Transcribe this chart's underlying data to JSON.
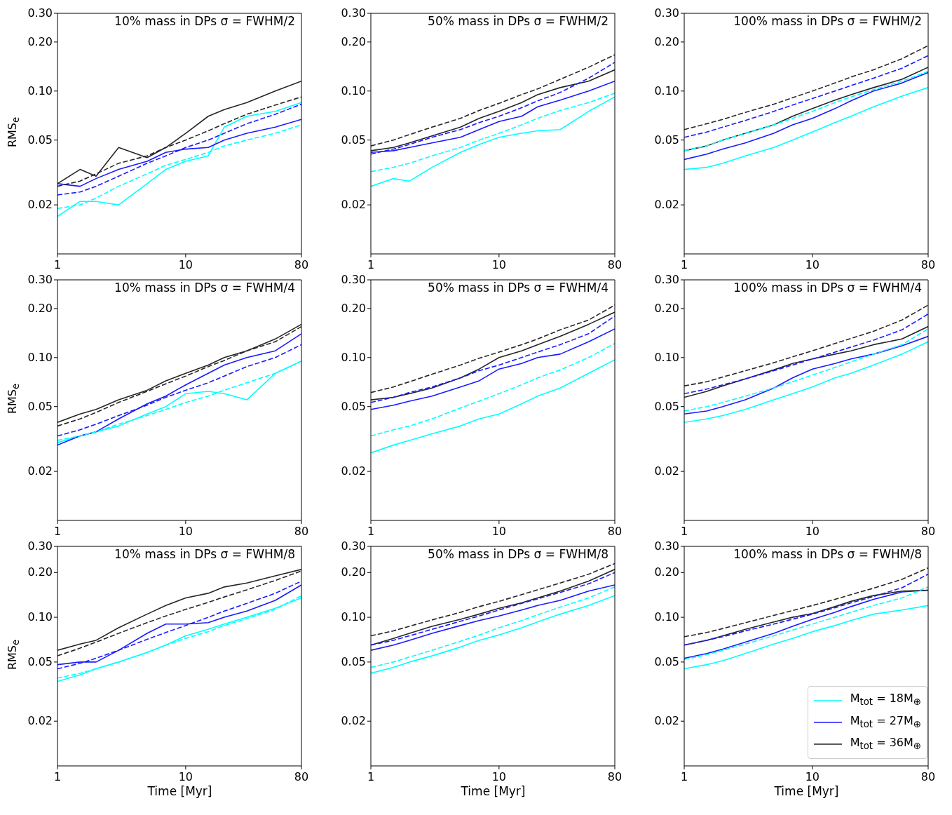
{
  "chart_data": [
    {
      "type": "line",
      "title": "10% mass in DPs σ = FWHM/2",
      "ylabel": "RMS$_{e}$",
      "log": "xy",
      "marker": "none",
      "xlim": [
        1,
        80
      ],
      "ylim": [
        0.01,
        0.3
      ],
      "xticks": [
        1,
        10,
        80
      ],
      "yticks": [
        {
          "value": 0.02,
          "label": "0.02"
        },
        {
          "value": 0.05,
          "label": "0.05"
        },
        {
          "value": 0.1,
          "label": "0.10"
        },
        {
          "value": 0.2,
          "label": "0.20"
        },
        {
          "value": 0.3,
          "label": "0.30"
        }
      ],
      "x": [
        1,
        1.5,
        2,
        3,
        5,
        7,
        10,
        15,
        20,
        30,
        50,
        80
      ],
      "series": [
        {
          "color": "#00ffff",
          "line_style": "solid",
          "values": [
            0.017,
            0.021,
            0.021,
            0.02,
            0.027,
            0.033,
            0.037,
            0.04,
            0.06,
            0.07,
            0.075,
            0.085
          ]
        },
        {
          "color": "#1a1aff",
          "line_style": "solid",
          "values": [
            0.027,
            0.026,
            0.029,
            0.033,
            0.037,
            0.042,
            0.044,
            0.045,
            0.05,
            0.055,
            0.06,
            0.067
          ]
        },
        {
          "color": "#262626",
          "line_style": "solid",
          "values": [
            0.027,
            0.033,
            0.03,
            0.045,
            0.039,
            0.045,
            0.055,
            0.07,
            0.077,
            0.085,
            0.1,
            0.115
          ]
        },
        {
          "color": "#00ffff",
          "line_style": "dashed",
          "values": [
            0.019,
            0.02,
            0.022,
            0.026,
            0.031,
            0.035,
            0.038,
            0.042,
            0.046,
            0.05,
            0.055,
            0.062
          ]
        },
        {
          "color": "#1a1aff",
          "line_style": "dashed",
          "values": [
            0.023,
            0.024,
            0.026,
            0.03,
            0.036,
            0.04,
            0.045,
            0.05,
            0.055,
            0.063,
            0.072,
            0.083
          ]
        },
        {
          "color": "#262626",
          "line_style": "dashed",
          "values": [
            0.026,
            0.028,
            0.031,
            0.036,
            0.04,
            0.045,
            0.05,
            0.057,
            0.063,
            0.072,
            0.082,
            0.092
          ]
        }
      ]
    },
    {
      "type": "line",
      "title": "50% mass in DPs σ = FWHM/2",
      "log": "xy",
      "marker": "none",
      "xlim": [
        1,
        80
      ],
      "ylim": [
        0.01,
        0.3
      ],
      "xticks": [
        1,
        10,
        80
      ],
      "yticks": [
        {
          "value": 0.02,
          "label": "0.02"
        },
        {
          "value": 0.05,
          "label": "0.05"
        },
        {
          "value": 0.1,
          "label": "0.10"
        },
        {
          "value": 0.2,
          "label": "0.20"
        },
        {
          "value": 0.3,
          "label": "0.30"
        }
      ],
      "x": [
        1,
        1.5,
        2,
        3,
        5,
        7,
        10,
        15,
        20,
        30,
        50,
        80
      ],
      "series": [
        {
          "color": "#00ffff",
          "line_style": "solid",
          "values": [
            0.026,
            0.029,
            0.028,
            0.034,
            0.042,
            0.047,
            0.052,
            0.055,
            0.057,
            0.058,
            0.075,
            0.092
          ]
        },
        {
          "color": "#1a1aff",
          "line_style": "solid",
          "values": [
            0.042,
            0.043,
            0.045,
            0.048,
            0.052,
            0.058,
            0.065,
            0.07,
            0.08,
            0.088,
            0.1,
            0.115
          ]
        },
        {
          "color": "#262626",
          "line_style": "solid",
          "values": [
            0.043,
            0.045,
            0.048,
            0.053,
            0.06,
            0.068,
            0.075,
            0.085,
            0.095,
            0.105,
            0.115,
            0.135
          ]
        },
        {
          "color": "#00ffff",
          "line_style": "dashed",
          "values": [
            0.032,
            0.034,
            0.036,
            0.04,
            0.045,
            0.05,
            0.055,
            0.062,
            0.068,
            0.076,
            0.085,
            0.097
          ]
        },
        {
          "color": "#1a1aff",
          "line_style": "dashed",
          "values": [
            0.041,
            0.044,
            0.047,
            0.052,
            0.058,
            0.064,
            0.07,
            0.079,
            0.087,
            0.098,
            0.12,
            0.15
          ]
        },
        {
          "color": "#262626",
          "line_style": "dashed",
          "values": [
            0.046,
            0.05,
            0.054,
            0.06,
            0.068,
            0.076,
            0.084,
            0.095,
            0.103,
            0.118,
            0.14,
            0.167
          ]
        }
      ]
    },
    {
      "type": "line",
      "title": "100% mass in DPs σ = FWHM/2",
      "log": "xy",
      "marker": "none",
      "xlim": [
        1,
        80
      ],
      "ylim": [
        0.01,
        0.3
      ],
      "xticks": [
        1,
        10,
        80
      ],
      "yticks": [
        {
          "value": 0.02,
          "label": "0.02"
        },
        {
          "value": 0.05,
          "label": "0.05"
        },
        {
          "value": 0.1,
          "label": "0.10"
        },
        {
          "value": 0.2,
          "label": "0.20"
        },
        {
          "value": 0.3,
          "label": "0.30"
        }
      ],
      "x": [
        1,
        1.5,
        2,
        3,
        5,
        7,
        10,
        15,
        20,
        30,
        50,
        80
      ],
      "series": [
        {
          "color": "#00ffff",
          "line_style": "solid",
          "values": [
            0.033,
            0.034,
            0.036,
            0.04,
            0.045,
            0.05,
            0.056,
            0.064,
            0.07,
            0.08,
            0.093,
            0.105
          ]
        },
        {
          "color": "#1a1aff",
          "line_style": "solid",
          "values": [
            0.038,
            0.041,
            0.044,
            0.048,
            0.055,
            0.062,
            0.068,
            0.078,
            0.087,
            0.1,
            0.112,
            0.13
          ]
        },
        {
          "color": "#262626",
          "line_style": "solid",
          "values": [
            0.043,
            0.046,
            0.05,
            0.055,
            0.062,
            0.07,
            0.078,
            0.088,
            0.095,
            0.105,
            0.118,
            0.14
          ]
        },
        {
          "color": "#00ffff",
          "line_style": "dashed",
          "values": [
            0.043,
            0.046,
            0.05,
            0.055,
            0.062,
            0.068,
            0.075,
            0.085,
            0.092,
            0.102,
            0.115,
            0.132
          ]
        },
        {
          "color": "#1a1aff",
          "line_style": "dashed",
          "values": [
            0.052,
            0.056,
            0.06,
            0.066,
            0.075,
            0.082,
            0.09,
            0.1,
            0.108,
            0.12,
            0.138,
            0.165
          ]
        },
        {
          "color": "#262626",
          "line_style": "dashed",
          "values": [
            0.058,
            0.063,
            0.067,
            0.074,
            0.083,
            0.091,
            0.1,
            0.112,
            0.122,
            0.135,
            0.158,
            0.19
          ]
        }
      ]
    },
    {
      "type": "line",
      "title": "10% mass in DPs σ = FWHM/4",
      "ylabel": "RMS$_{e}$",
      "log": "xy",
      "marker": "none",
      "xlim": [
        1,
        80
      ],
      "ylim": [
        0.01,
        0.3
      ],
      "xticks": [
        1,
        10,
        80
      ],
      "yticks": [
        {
          "value": 0.02,
          "label": "0.02"
        },
        {
          "value": 0.05,
          "label": "0.05"
        },
        {
          "value": 0.1,
          "label": "0.10"
        },
        {
          "value": 0.2,
          "label": "0.20"
        },
        {
          "value": 0.3,
          "label": "0.30"
        }
      ],
      "x": [
        1,
        1.5,
        2,
        3,
        5,
        7,
        10,
        15,
        20,
        30,
        50,
        80
      ],
      "series": [
        {
          "color": "#00ffff",
          "line_style": "solid",
          "values": [
            0.03,
            0.033,
            0.035,
            0.038,
            0.045,
            0.05,
            0.06,
            0.062,
            0.06,
            0.055,
            0.08,
            0.095
          ]
        },
        {
          "color": "#1a1aff",
          "line_style": "solid",
          "values": [
            0.029,
            0.033,
            0.035,
            0.042,
            0.052,
            0.058,
            0.068,
            0.08,
            0.09,
            0.1,
            0.11,
            0.14
          ]
        },
        {
          "color": "#262626",
          "line_style": "solid",
          "values": [
            0.04,
            0.045,
            0.048,
            0.055,
            0.063,
            0.072,
            0.08,
            0.09,
            0.1,
            0.11,
            0.13,
            0.16
          ]
        },
        {
          "color": "#00ffff",
          "line_style": "dashed",
          "values": [
            0.031,
            0.033,
            0.035,
            0.039,
            0.044,
            0.048,
            0.053,
            0.058,
            0.063,
            0.07,
            0.08,
            0.095
          ]
        },
        {
          "color": "#1a1aff",
          "line_style": "dashed",
          "values": [
            0.033,
            0.036,
            0.039,
            0.044,
            0.051,
            0.057,
            0.063,
            0.07,
            0.077,
            0.088,
            0.1,
            0.12
          ]
        },
        {
          "color": "#262626",
          "line_style": "dashed",
          "values": [
            0.038,
            0.042,
            0.046,
            0.053,
            0.062,
            0.069,
            0.077,
            0.088,
            0.096,
            0.11,
            0.125,
            0.155
          ]
        }
      ]
    },
    {
      "type": "line",
      "title": "50% mass in DPs σ = FWHM/4",
      "log": "xy",
      "marker": "none",
      "xlim": [
        1,
        80
      ],
      "ylim": [
        0.01,
        0.3
      ],
      "xticks": [
        1,
        10,
        80
      ],
      "yticks": [
        {
          "value": 0.02,
          "label": "0.02"
        },
        {
          "value": 0.05,
          "label": "0.05"
        },
        {
          "value": 0.1,
          "label": "0.10"
        },
        {
          "value": 0.2,
          "label": "0.20"
        },
        {
          "value": 0.3,
          "label": "0.30"
        }
      ],
      "x": [
        1,
        1.5,
        2,
        3,
        5,
        7,
        10,
        15,
        20,
        30,
        50,
        80
      ],
      "series": [
        {
          "color": "#00ffff",
          "line_style": "solid",
          "values": [
            0.026,
            0.029,
            0.031,
            0.034,
            0.038,
            0.042,
            0.045,
            0.052,
            0.058,
            0.065,
            0.08,
            0.097
          ]
        },
        {
          "color": "#1a1aff",
          "line_style": "solid",
          "values": [
            0.048,
            0.051,
            0.054,
            0.058,
            0.066,
            0.072,
            0.085,
            0.092,
            0.1,
            0.105,
            0.125,
            0.15
          ]
        },
        {
          "color": "#262626",
          "line_style": "solid",
          "values": [
            0.055,
            0.057,
            0.06,
            0.065,
            0.075,
            0.085,
            0.1,
            0.11,
            0.12,
            0.135,
            0.16,
            0.19
          ]
        },
        {
          "color": "#00ffff",
          "line_style": "dashed",
          "values": [
            0.033,
            0.036,
            0.038,
            0.042,
            0.049,
            0.054,
            0.06,
            0.068,
            0.075,
            0.084,
            0.1,
            0.122
          ]
        },
        {
          "color": "#1a1aff",
          "line_style": "dashed",
          "values": [
            0.053,
            0.057,
            0.061,
            0.066,
            0.075,
            0.083,
            0.09,
            0.1,
            0.108,
            0.12,
            0.14,
            0.18
          ]
        },
        {
          "color": "#262626",
          "line_style": "dashed",
          "values": [
            0.061,
            0.066,
            0.071,
            0.079,
            0.09,
            0.099,
            0.108,
            0.12,
            0.13,
            0.148,
            0.17,
            0.21
          ]
        }
      ]
    },
    {
      "type": "line",
      "title": "100% mass in DPs σ = FWHM/4",
      "log": "xy",
      "marker": "none",
      "xlim": [
        1,
        80
      ],
      "ylim": [
        0.01,
        0.3
      ],
      "xticks": [
        1,
        10,
        80
      ],
      "yticks": [
        {
          "value": 0.02,
          "label": "0.02"
        },
        {
          "value": 0.05,
          "label": "0.05"
        },
        {
          "value": 0.1,
          "label": "0.10"
        },
        {
          "value": 0.2,
          "label": "0.20"
        },
        {
          "value": 0.3,
          "label": "0.30"
        }
      ],
      "x": [
        1,
        1.5,
        2,
        3,
        5,
        7,
        10,
        15,
        20,
        30,
        50,
        80
      ],
      "series": [
        {
          "color": "#00ffff",
          "line_style": "solid",
          "values": [
            0.04,
            0.042,
            0.044,
            0.048,
            0.055,
            0.06,
            0.066,
            0.075,
            0.08,
            0.09,
            0.105,
            0.125
          ]
        },
        {
          "color": "#1a1aff",
          "line_style": "solid",
          "values": [
            0.045,
            0.047,
            0.05,
            0.055,
            0.065,
            0.075,
            0.085,
            0.092,
            0.098,
            0.105,
            0.118,
            0.135
          ]
        },
        {
          "color": "#262626",
          "line_style": "solid",
          "values": [
            0.057,
            0.062,
            0.067,
            0.074,
            0.084,
            0.092,
            0.098,
            0.105,
            0.11,
            0.12,
            0.13,
            0.155
          ]
        },
        {
          "color": "#00ffff",
          "line_style": "dashed",
          "values": [
            0.047,
            0.05,
            0.053,
            0.058,
            0.065,
            0.071,
            0.078,
            0.087,
            0.094,
            0.105,
            0.12,
            0.15
          ]
        },
        {
          "color": "#1a1aff",
          "line_style": "dashed",
          "values": [
            0.06,
            0.064,
            0.068,
            0.074,
            0.083,
            0.09,
            0.098,
            0.108,
            0.116,
            0.128,
            0.148,
            0.185
          ]
        },
        {
          "color": "#262626",
          "line_style": "dashed",
          "values": [
            0.067,
            0.071,
            0.076,
            0.083,
            0.093,
            0.101,
            0.11,
            0.122,
            0.131,
            0.145,
            0.17,
            0.21
          ]
        }
      ]
    },
    {
      "type": "line",
      "title": "10% mass in DPs σ = FWHM/8",
      "ylabel": "RMS$_{e}$",
      "xlabel": "Time [Myr]",
      "log": "xy",
      "marker": "none",
      "xlim": [
        1,
        80
      ],
      "ylim": [
        0.01,
        0.3
      ],
      "xticks": [
        1,
        10,
        80
      ],
      "yticks": [
        {
          "value": 0.02,
          "label": "0.02"
        },
        {
          "value": 0.05,
          "label": "0.05"
        },
        {
          "value": 0.1,
          "label": "0.10"
        },
        {
          "value": 0.2,
          "label": "0.20"
        },
        {
          "value": 0.3,
          "label": "0.30"
        }
      ],
      "x": [
        1,
        1.5,
        2,
        3,
        5,
        7,
        10,
        15,
        20,
        30,
        50,
        80
      ],
      "series": [
        {
          "color": "#00ffff",
          "line_style": "solid",
          "values": [
            0.037,
            0.041,
            0.045,
            0.05,
            0.058,
            0.065,
            0.075,
            0.083,
            0.09,
            0.1,
            0.115,
            0.135
          ]
        },
        {
          "color": "#1a1aff",
          "line_style": "solid",
          "values": [
            0.048,
            0.05,
            0.05,
            0.06,
            0.078,
            0.09,
            0.09,
            0.092,
            0.1,
            0.11,
            0.13,
            0.165
          ]
        },
        {
          "color": "#262626",
          "line_style": "solid",
          "values": [
            0.06,
            0.066,
            0.07,
            0.085,
            0.105,
            0.12,
            0.135,
            0.145,
            0.16,
            0.17,
            0.19,
            0.21
          ]
        },
        {
          "color": "#00ffff",
          "line_style": "dashed",
          "values": [
            0.039,
            0.042,
            0.045,
            0.05,
            0.058,
            0.065,
            0.072,
            0.08,
            0.088,
            0.098,
            0.113,
            0.14
          ]
        },
        {
          "color": "#1a1aff",
          "line_style": "dashed",
          "values": [
            0.045,
            0.049,
            0.053,
            0.06,
            0.071,
            0.079,
            0.088,
            0.1,
            0.11,
            0.124,
            0.145,
            0.175
          ]
        },
        {
          "color": "#262626",
          "line_style": "dashed",
          "values": [
            0.055,
            0.062,
            0.068,
            0.078,
            0.092,
            0.102,
            0.113,
            0.126,
            0.137,
            0.153,
            0.177,
            0.205
          ]
        }
      ]
    },
    {
      "type": "line",
      "title": "50% mass in DPs σ = FWHM/8",
      "xlabel": "Time [Myr]",
      "log": "xy",
      "marker": "none",
      "xlim": [
        1,
        80
      ],
      "ylim": [
        0.01,
        0.3
      ],
      "xticks": [
        1,
        10,
        80
      ],
      "yticks": [
        {
          "value": 0.02,
          "label": "0.02"
        },
        {
          "value": 0.05,
          "label": "0.05"
        },
        {
          "value": 0.1,
          "label": "0.10"
        },
        {
          "value": 0.2,
          "label": "0.20"
        },
        {
          "value": 0.3,
          "label": "0.30"
        }
      ],
      "x": [
        1,
        1.5,
        2,
        3,
        5,
        7,
        10,
        15,
        20,
        30,
        50,
        80
      ],
      "series": [
        {
          "color": "#00ffff",
          "line_style": "solid",
          "values": [
            0.042,
            0.046,
            0.05,
            0.055,
            0.063,
            0.07,
            0.076,
            0.085,
            0.093,
            0.105,
            0.12,
            0.14
          ]
        },
        {
          "color": "#1a1aff",
          "line_style": "solid",
          "values": [
            0.06,
            0.065,
            0.07,
            0.078,
            0.088,
            0.095,
            0.102,
            0.112,
            0.12,
            0.13,
            0.15,
            0.165
          ]
        },
        {
          "color": "#262626",
          "line_style": "solid",
          "values": [
            0.065,
            0.072,
            0.078,
            0.087,
            0.097,
            0.105,
            0.115,
            0.125,
            0.135,
            0.15,
            0.175,
            0.21
          ]
        },
        {
          "color": "#00ffff",
          "line_style": "dashed",
          "values": [
            0.046,
            0.05,
            0.054,
            0.06,
            0.069,
            0.076,
            0.085,
            0.095,
            0.104,
            0.117,
            0.135,
            0.16
          ]
        },
        {
          "color": "#1a1aff",
          "line_style": "dashed",
          "values": [
            0.065,
            0.07,
            0.075,
            0.083,
            0.094,
            0.102,
            0.112,
            0.124,
            0.133,
            0.147,
            0.168,
            0.2
          ]
        },
        {
          "color": "#262626",
          "line_style": "dashed",
          "values": [
            0.075,
            0.081,
            0.087,
            0.096,
            0.108,
            0.118,
            0.128,
            0.142,
            0.153,
            0.17,
            0.195,
            0.23
          ]
        }
      ]
    },
    {
      "type": "line",
      "title": "100% mass in DPs σ = FWHM/8",
      "xlabel": "Time [Myr]",
      "log": "xy",
      "marker": "none",
      "legend": "bottom right",
      "xlim": [
        1,
        80
      ],
      "ylim": [
        0.01,
        0.3
      ],
      "xticks": [
        1,
        10,
        80
      ],
      "yticks": [
        {
          "value": 0.02,
          "label": "0.02"
        },
        {
          "value": 0.05,
          "label": "0.05"
        },
        {
          "value": 0.1,
          "label": "0.10"
        },
        {
          "value": 0.2,
          "label": "0.20"
        },
        {
          "value": 0.3,
          "label": "0.30"
        }
      ],
      "x": [
        1,
        1.5,
        2,
        3,
        5,
        7,
        10,
        15,
        20,
        30,
        50,
        80
      ],
      "series": [
        {
          "name": "M$_{tot}$ = 18M$_{⊕}$",
          "color": "#00ffff",
          "line_style": "solid",
          "values": [
            0.045,
            0.048,
            0.051,
            0.057,
            0.066,
            0.072,
            0.08,
            0.088,
            0.095,
            0.105,
            0.112,
            0.12
          ]
        },
        {
          "name": "M$_{tot}$ = 27M$_{⊕}$",
          "color": "#1a1aff",
          "line_style": "solid",
          "values": [
            0.053,
            0.057,
            0.061,
            0.068,
            0.078,
            0.087,
            0.097,
            0.108,
            0.118,
            0.132,
            0.148,
            0.152
          ]
        },
        {
          "name": "M$_{tot}$ = 36M$_{⊕}$",
          "color": "#262626",
          "line_style": "solid",
          "values": [
            0.065,
            0.07,
            0.075,
            0.083,
            0.093,
            0.1,
            0.106,
            0.118,
            0.128,
            0.14,
            0.15,
            0.152
          ]
        },
        {
          "color": "#00ffff",
          "line_style": "dashed",
          "values": [
            0.052,
            0.056,
            0.06,
            0.066,
            0.075,
            0.082,
            0.09,
            0.1,
            0.108,
            0.12,
            0.135,
            0.16
          ]
        },
        {
          "color": "#1a1aff",
          "line_style": "dashed",
          "values": [
            0.065,
            0.07,
            0.074,
            0.081,
            0.09,
            0.097,
            0.105,
            0.116,
            0.125,
            0.138,
            0.158,
            0.195
          ]
        },
        {
          "color": "#262626",
          "line_style": "dashed",
          "values": [
            0.074,
            0.079,
            0.084,
            0.092,
            0.103,
            0.111,
            0.12,
            0.132,
            0.142,
            0.157,
            0.18,
            0.215
          ]
        }
      ]
    }
  ]
}
